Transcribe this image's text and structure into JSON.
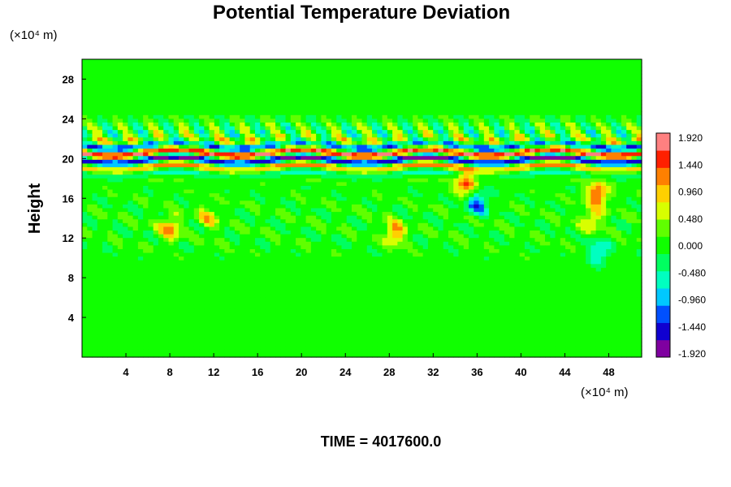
{
  "chart_data": {
    "type": "heatmap",
    "title": "Potential Temperature Deviation",
    "xlabel": "",
    "ylabel": "Height",
    "x_unit": "(×10⁴ m)",
    "y_unit": "(×10⁴ m)",
    "x_ticks": [
      4,
      8,
      12,
      16,
      20,
      24,
      28,
      32,
      36,
      40,
      44,
      48
    ],
    "y_ticks": [
      4,
      8,
      12,
      16,
      20,
      24,
      28
    ],
    "xlim": [
      0,
      51
    ],
    "ylim": [
      0,
      30
    ],
    "colorbar": {
      "labels": [
        "1.920",
        "1.440",
        "0.960",
        "0.480",
        "0.000",
        "-0.480",
        "-0.960",
        "-1.440",
        "-1.920"
      ],
      "range": [
        -2.16,
        2.16
      ],
      "colors": [
        "#7f00a0",
        "#1000d0",
        "#0050ff",
        "#00c8ff",
        "#00ffc0",
        "#00ff60",
        "#10ff00",
        "#60ff00",
        "#d8ff00",
        "#ffd000",
        "#ff8000",
        "#ff2000",
        "#ff8080"
      ]
    },
    "background_value": 0.0,
    "features": [
      {
        "name": "tropopause band",
        "y_center": 20.2,
        "y_halfwidth": 1.5,
        "amplitude": 2.0
      },
      {
        "name": "upper wave band",
        "y_center": 22.5,
        "y_halfwidth": 1.5,
        "amplitude": 0.9
      },
      {
        "name": "mid turbulence band",
        "y_center": 13.5,
        "y_halfwidth": 3.5,
        "amplitude": 0.5
      }
    ],
    "hotspots": [
      {
        "x": 8.0,
        "y": 13.0,
        "value": 1.3
      },
      {
        "x": 11.5,
        "y": 14.0,
        "value": 0.9
      },
      {
        "x": 28.5,
        "y": 12.5,
        "value": 1.3
      },
      {
        "x": 35.0,
        "y": 17.5,
        "value": 1.6
      },
      {
        "x": 47.0,
        "y": 16.5,
        "value": 1.7
      },
      {
        "x": 46.5,
        "y": 14.0,
        "value": 1.0
      },
      {
        "x": 36.0,
        "y": 15.5,
        "value": -1.4
      },
      {
        "x": 47.0,
        "y": 10.5,
        "value": -1.0
      }
    ]
  },
  "footer": {
    "time_label": "TIME = 4017600.0"
  }
}
